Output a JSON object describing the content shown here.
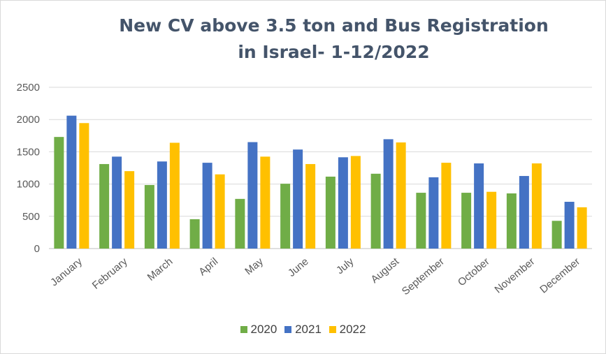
{
  "chart_data": {
    "type": "bar",
    "title_lines": [
      "New CV above 3.5 ton and Bus Registration",
      "in Israel- 1-12/2022"
    ],
    "categories": [
      "January",
      "February",
      "March",
      "April",
      "May",
      "June",
      "July",
      "August",
      "September",
      "October",
      "November",
      "December"
    ],
    "ylim": [
      0,
      2500
    ],
    "yticks": [
      0,
      500,
      1000,
      1500,
      2000,
      2500
    ],
    "grid": true,
    "legend_position": "bottom",
    "series": [
      {
        "name": "2020",
        "color": "#70ad47",
        "values": [
          1730,
          1310,
          985,
          455,
          770,
          1005,
          1115,
          1160,
          865,
          865,
          855,
          430
        ]
      },
      {
        "name": "2021",
        "color": "#4472c4",
        "values": [
          2060,
          1425,
          1350,
          1330,
          1650,
          1535,
          1415,
          1695,
          1105,
          1320,
          1125,
          725
        ]
      },
      {
        "name": "2022",
        "color": "#ffc000",
        "values": [
          1945,
          1200,
          1640,
          1150,
          1425,
          1310,
          1435,
          1645,
          1330,
          880,
          1320,
          640
        ]
      }
    ]
  }
}
